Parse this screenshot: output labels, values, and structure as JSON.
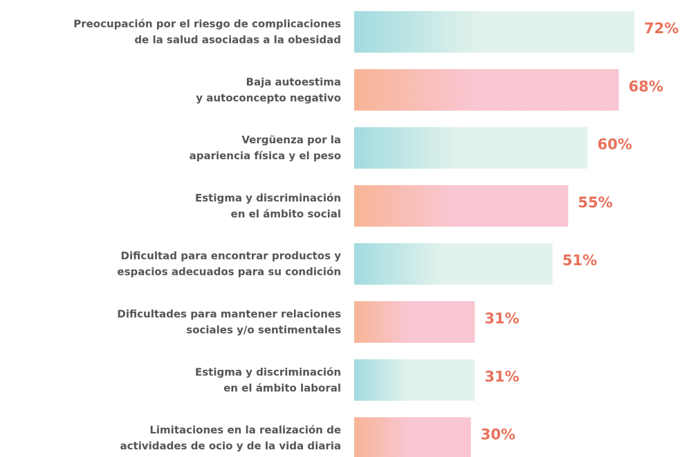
{
  "chart_data": {
    "type": "bar",
    "orientation": "horizontal",
    "categories": [
      [
        "Preocupación por el riesgo de complicaciones",
        "de la salud asociadas a la obesidad"
      ],
      [
        "Baja autoestima",
        "y autoconcepto negativo"
      ],
      [
        "Vergüenza por la",
        "apariencia física y el peso"
      ],
      [
        "Estigma y discriminación",
        "en el ámbito social"
      ],
      [
        "Dificultad para encontrar productos y",
        "espacios adecuados para su condición"
      ],
      [
        "Dificultades para mantener relaciones",
        "sociales y/o sentimentales"
      ],
      [
        "Estigma y discriminación",
        "en el ámbito laboral"
      ],
      [
        "Limitaciones en la realización de",
        "actividades de ocio y de la vida diaria"
      ]
    ],
    "values": [
      72,
      68,
      60,
      55,
      51,
      31,
      31,
      30
    ],
    "value_labels": [
      "72%",
      "68%",
      "60%",
      "55%",
      "51%",
      "31%",
      "31%",
      "30%"
    ],
    "colors": [
      [
        "#a2dbe0",
        "#e2f2ec"
      ],
      [
        "#f8b596",
        "#f9c6d1"
      ],
      [
        "#a2dbe0",
        "#e2f2ec"
      ],
      [
        "#f8b596",
        "#f9c6d1"
      ],
      [
        "#a2dbe0",
        "#e2f2ec"
      ],
      [
        "#f8b596",
        "#f9c6d1"
      ],
      [
        "#a2dbe0",
        "#e2f2ec"
      ],
      [
        "#f8b596",
        "#f9c6d1"
      ]
    ],
    "value_label_color": "#e8715a"
  }
}
